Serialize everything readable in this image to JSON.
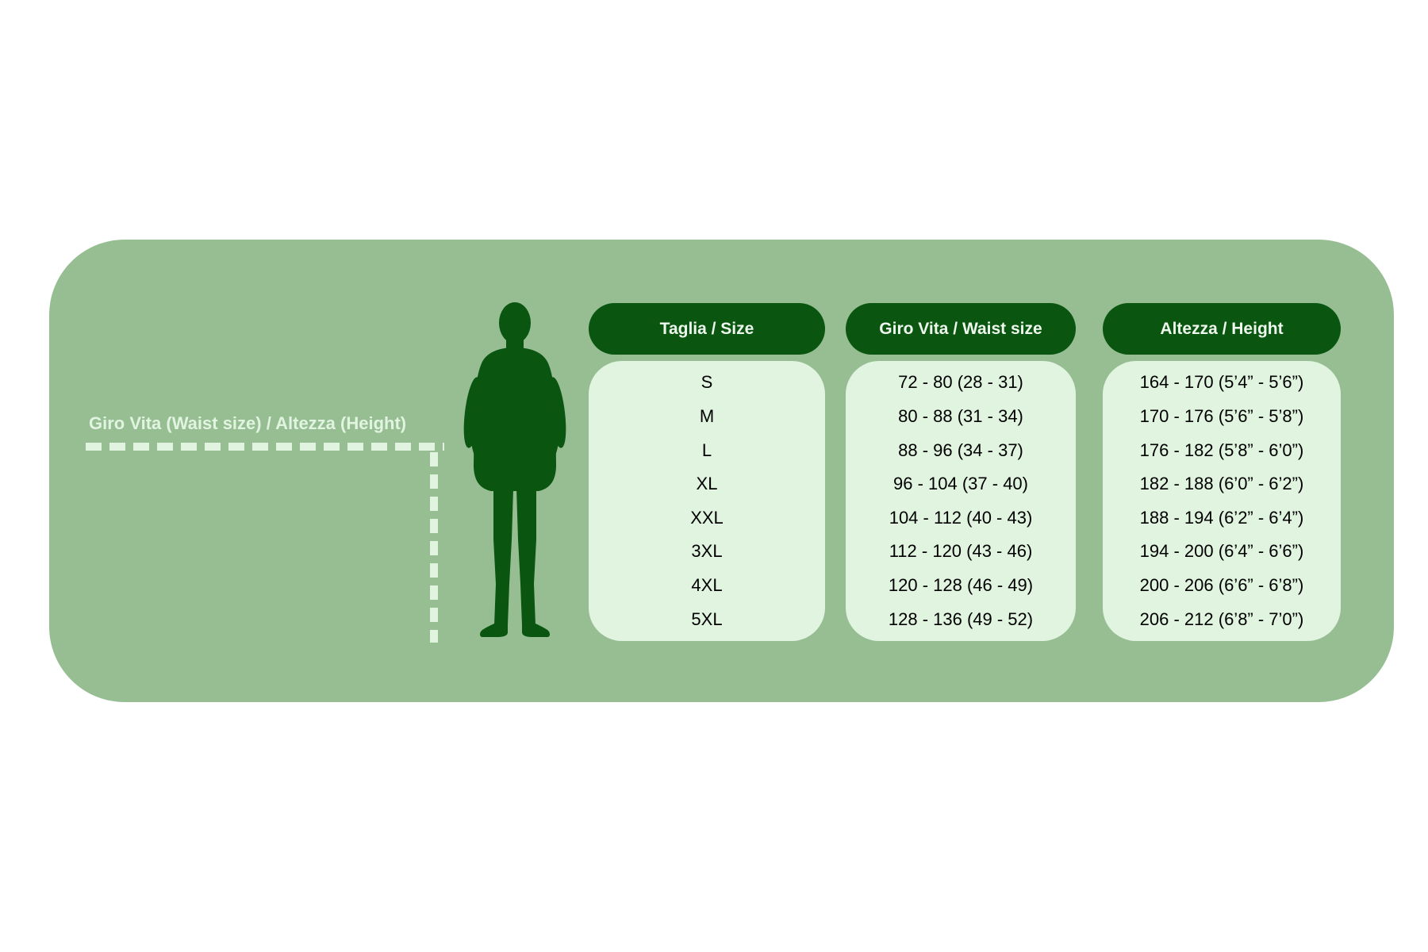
{
  "colors": {
    "page_background": "#ffffff",
    "panel_background": "#96be92",
    "header_pill_background": "#0a550f",
    "column_background": "#e0f4e0",
    "header_text": "#eef8ee",
    "cell_text": "#000000",
    "annotation_text": "#e0f4e0",
    "silhouette": "#0a550f"
  },
  "icons": {
    "man_silhouette": "standing-man-in-suit-silhouette"
  },
  "chart_data": {
    "type": "table",
    "title": "",
    "annotation_label": "Giro Vita  (Waist size) / Altezza (Height)",
    "grid": false,
    "legend_position": "none",
    "columns": [
      {
        "header": "Taglia / Size",
        "values": [
          "S",
          "M",
          "L",
          "XL",
          "XXL",
          "3XL",
          "4XL",
          "5XL"
        ]
      },
      {
        "header": "Giro Vita / Waist size",
        "values": [
          "72 - 80 (28 - 31)",
          "80 - 88 (31 - 34)",
          "88 - 96 (34 - 37)",
          "96 - 104 (37 - 40)",
          "104 - 112 (40 - 43)",
          "112 - 120 (43 - 46)",
          "120 - 128 (46 - 49)",
          "128 - 136 (49 - 52)"
        ]
      },
      {
        "header": "Altezza / Height",
        "values": [
          "164 - 170 (5’4” - 5’6”)",
          "170 - 176 (5’6” - 5’8”)",
          "176 - 182 (5’8” - 6’0”)",
          "182 - 188 (6’0” - 6’2”)",
          "188 - 194 (6’2” - 6’4”)",
          "194 - 200 (6’4” - 6’6”)",
          "200 - 206 (6’6” - 6’8”)",
          "206 - 212 (6’8” - 7’0”)"
        ]
      }
    ]
  }
}
